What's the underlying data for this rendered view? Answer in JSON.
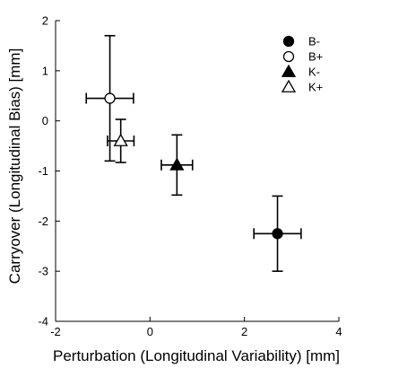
{
  "chart_data": {
    "type": "scatter",
    "xlabel": "Perturbation (Longitudinal Variability) [mm]",
    "ylabel": "Carryover (Longitudinal Bias) [mm]",
    "xlim": [
      -2,
      4
    ],
    "ylim": [
      -4,
      2
    ],
    "x_ticks": [
      -2,
      0,
      2,
      4
    ],
    "y_ticks": [
      2,
      1,
      0,
      -1,
      -2,
      -3,
      -4
    ],
    "grid": false,
    "legend_position": "top-right",
    "error_bars": true,
    "series": [
      {
        "name": "B-",
        "marker": "circle",
        "filled": true,
        "x": 2.7,
        "y": -2.25,
        "xerr": 0.5,
        "yerr": 0.75
      },
      {
        "name": "B+",
        "marker": "circle",
        "filled": false,
        "x": -0.85,
        "y": 0.45,
        "xerr": 0.5,
        "yerr": 1.25
      },
      {
        "name": "K-",
        "marker": "triangle",
        "filled": true,
        "x": 0.57,
        "y": -0.88,
        "xerr": 0.33,
        "yerr": 0.6
      },
      {
        "name": "K+",
        "marker": "triangle",
        "filled": false,
        "x": -0.62,
        "y": -0.4,
        "xerr": 0.28,
        "yerr": 0.43
      }
    ]
  },
  "colors": {
    "marker": "#000000",
    "axis": "#000000"
  }
}
